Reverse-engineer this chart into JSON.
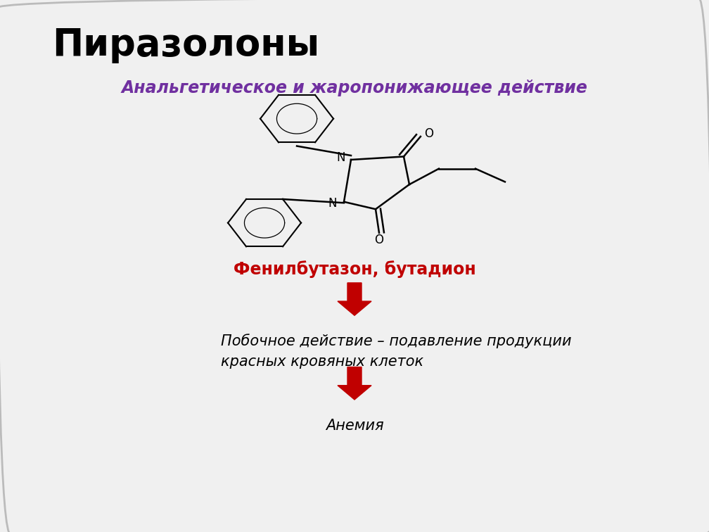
{
  "title": "Пиразолоны",
  "subtitle": "Анальгетическое и жаропонижающее действие",
  "subtitle_color": "#7030A0",
  "drug_name": "Фенилбутазон, бутадион",
  "drug_name_color": "#C00000",
  "side_effect_text": "Побочное действие – подавление продукции\nкрасных кровяных клеток",
  "final_text": "Анемия",
  "arrow_color": "#C00000",
  "background_color": "#f0f0f0",
  "title_fontsize": 38,
  "subtitle_fontsize": 17,
  "drug_fontsize": 17,
  "side_effect_fontsize": 15,
  "final_fontsize": 15
}
